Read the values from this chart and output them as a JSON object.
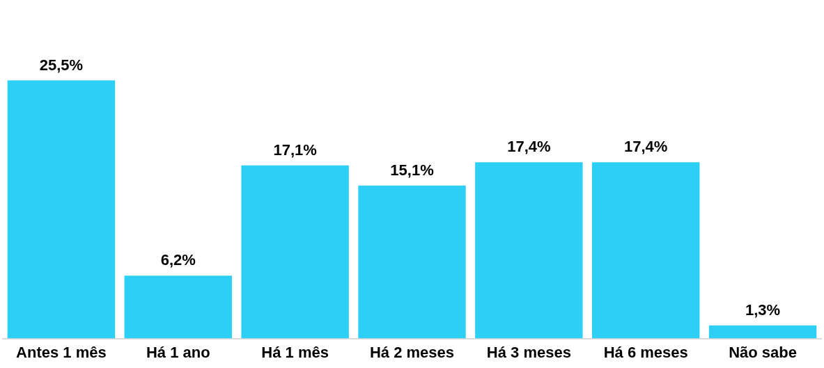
{
  "chart_data": {
    "type": "bar",
    "categories": [
      "Antes 1 mês",
      "Há 1 ano",
      "Há 1 mês",
      "Há 2 meses",
      "Há 3 meses",
      "Há 6 meses",
      "Não sabe"
    ],
    "values": [
      25.5,
      6.2,
      17.1,
      15.1,
      17.4,
      17.4,
      1.3
    ],
    "value_labels": [
      "25,5%",
      "6,2%",
      "17,1%",
      "15,1%",
      "17,4%",
      "17,4%",
      "1,3%"
    ],
    "color": "#2ecff5",
    "grid": false,
    "legend": false
  }
}
